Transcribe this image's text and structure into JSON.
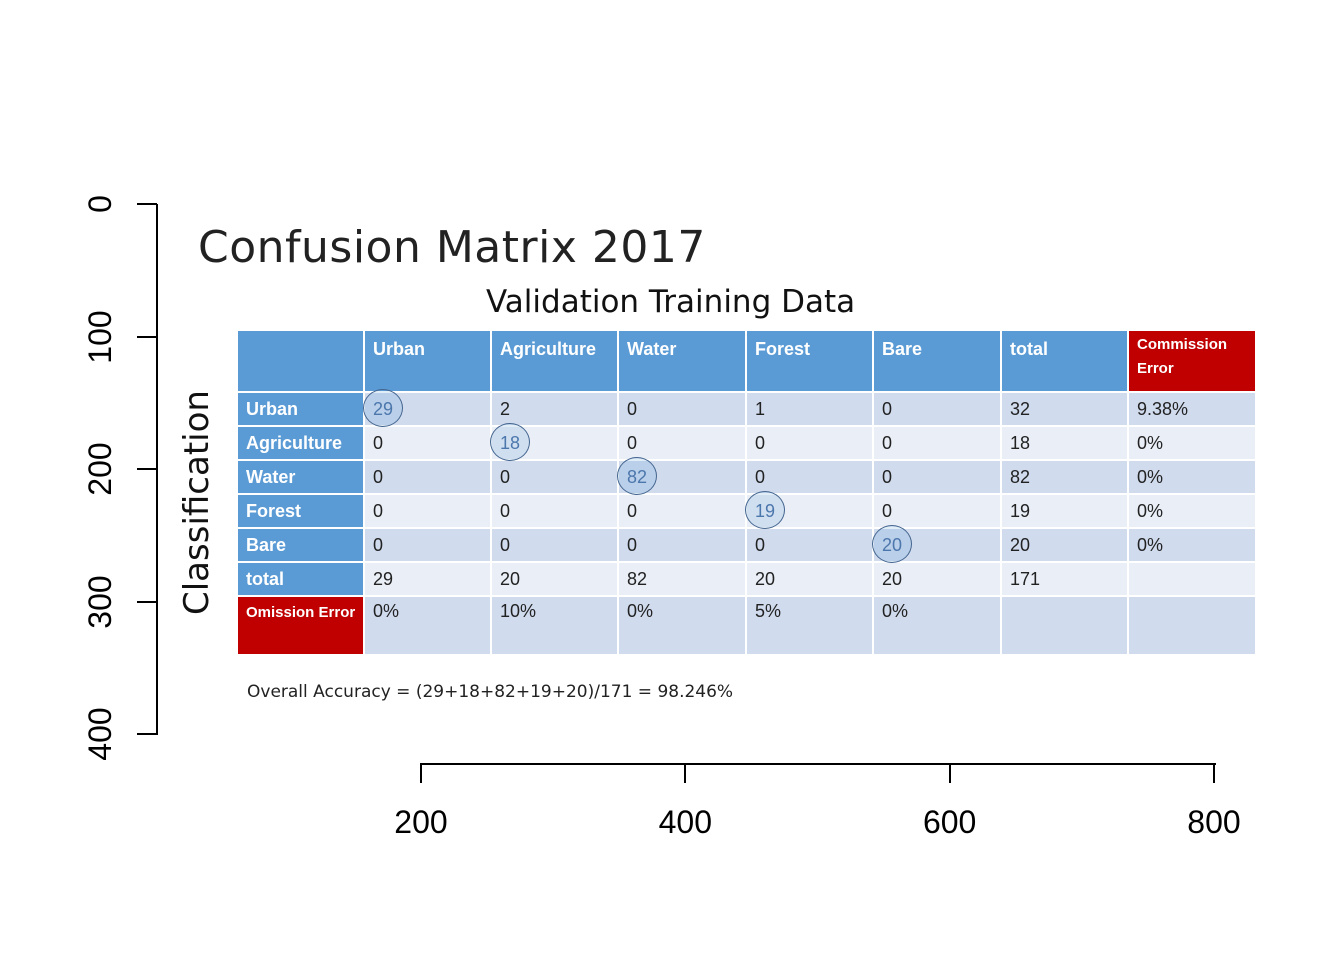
{
  "chart_data": {
    "type": "table",
    "xlim": [
      200,
      800
    ],
    "ylim": [
      0,
      400
    ],
    "x_ticks": [
      "200",
      "400",
      "600",
      "800"
    ],
    "y_ticks": [
      "0",
      "100",
      "200",
      "300",
      "400"
    ],
    "title": "Confusion Matrix 2017",
    "subtitle": "Validation Training Data",
    "row_axis_label": "Classification",
    "columns": [
      "",
      "Urban",
      "Agriculture",
      "Water",
      "Forest",
      "Bare",
      "total",
      "Commission Error"
    ],
    "rows": [
      {
        "label": "Urban",
        "values": [
          "29",
          "2",
          "0",
          "1",
          "0",
          "32",
          "9.38%"
        ],
        "diag": 0
      },
      {
        "label": "Agriculture",
        "values": [
          "0",
          "18",
          "0",
          "0",
          "0",
          "18",
          "0%"
        ],
        "diag": 1
      },
      {
        "label": "Water",
        "values": [
          "0",
          "0",
          "82",
          "0",
          "0",
          "82",
          "0%"
        ],
        "diag": 2
      },
      {
        "label": "Forest",
        "values": [
          "0",
          "0",
          "0",
          "19",
          "0",
          "19",
          "0%"
        ],
        "diag": 3
      },
      {
        "label": "Bare",
        "values": [
          "0",
          "0",
          "0",
          "0",
          "20",
          "20",
          "0%"
        ],
        "diag": 4
      },
      {
        "label": "total",
        "values": [
          "29",
          "20",
          "82",
          "20",
          "20",
          "171",
          ""
        ],
        "diag": -1
      },
      {
        "label": "Omission Error",
        "values": [
          "0%",
          "10%",
          "0%",
          "5%",
          "0%",
          "",
          ""
        ],
        "diag": -1
      }
    ],
    "accuracy_text": "Overall Accuracy = (29+18+82+19+20)/171 = 98.246%",
    "colors": {
      "header": "#5b9bd5",
      "error_header": "#c00000",
      "row_dark": "#d0dbee",
      "row_light": "#e9eef7"
    }
  }
}
